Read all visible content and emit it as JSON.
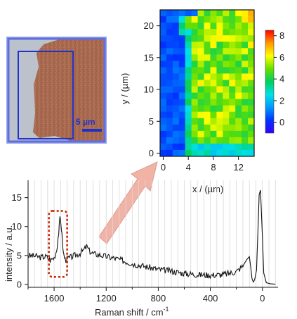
{
  "micrograph": {
    "scale_bar_label": "5 µm",
    "colors": {
      "frame": "#5f6fe0",
      "roi_box": "#2233cc",
      "background": "#bfc4cf",
      "sample": "#a86a4e"
    }
  },
  "chart_data": [
    {
      "type": "heatmap",
      "xlabel": "x / (µm)",
      "ylabel": "y / (µm)",
      "x_ticks": [
        "0",
        "4",
        "8",
        "12"
      ],
      "y_ticks": [
        "0",
        "5",
        "10",
        "15",
        "20"
      ],
      "xlim": [
        -0.5,
        14.5
      ],
      "ylim": [
        -0.5,
        22.5
      ],
      "grid_size": [
        15,
        23
      ],
      "colorbar": {
        "ticks": [
          "0",
          "2",
          "4",
          "6",
          "8"
        ],
        "range": [
          -1,
          8.5
        ],
        "colormap": [
          "#3300ff",
          "#0033ff",
          "#0099ff",
          "#00e0e6",
          "#00d060",
          "#66e000",
          "#ffff00",
          "#ff9900",
          "#ff0000"
        ]
      },
      "region_note_values": {
        "left_strip_level": 0.4,
        "sample_level": 5.2,
        "border_level": 3.0,
        "hot_spot_level": 7.5
      }
    },
    {
      "type": "line",
      "xlabel": "Raman shift / cm",
      "xlabel_superscript": "-1",
      "ylabel": "intensity / a.u.",
      "x_ticks": [
        "1600",
        "1200",
        "800",
        "400",
        "0"
      ],
      "y_ticks": [
        "0",
        "5",
        "10",
        "15"
      ],
      "xlim": [
        1800,
        -120
      ],
      "ylim": [
        -0.5,
        18
      ],
      "x_reversed": true,
      "series": [
        {
          "x": [
            1800,
            1750,
            1700,
            1660,
            1630,
            1600,
            1580,
            1565,
            1555,
            1548,
            1540,
            1530,
            1515,
            1500,
            1470,
            1440,
            1400,
            1370,
            1350,
            1330,
            1300,
            1250,
            1200,
            1150,
            1100,
            1000,
            900,
            800,
            700,
            600,
            500,
            400,
            300,
            200,
            150,
            120,
            100,
            90,
            80,
            70,
            60,
            45,
            35,
            25,
            15,
            5,
            -10,
            -30,
            -60,
            -100
          ],
          "y": [
            5.0,
            4.9,
            4.7,
            4.8,
            4.2,
            4.6,
            6.0,
            9.0,
            11.3,
            10.8,
            8.5,
            5.5,
            4.3,
            4.4,
            4.7,
            5.0,
            5.4,
            6.0,
            6.6,
            5.8,
            5.3,
            5.1,
            4.8,
            4.6,
            4.3,
            3.6,
            3.1,
            2.6,
            2.3,
            1.9,
            1.7,
            1.6,
            1.7,
            2.2,
            3.2,
            4.3,
            4.8,
            3.0,
            1.0,
            0.4,
            0.8,
            2.5,
            9.0,
            15.5,
            16.3,
            11.0,
            2.0,
            0.3,
            0.1,
            0.05
          ]
        }
      ],
      "highlight": {
        "x_range": [
          1640,
          1500
        ],
        "y_range": [
          1.3,
          12.7
        ],
        "color": "#cc2200"
      },
      "vertical_gridlines": true
    }
  ],
  "arrow": {
    "color": "#f2b3a7",
    "edge_color": "#de9a8c"
  }
}
